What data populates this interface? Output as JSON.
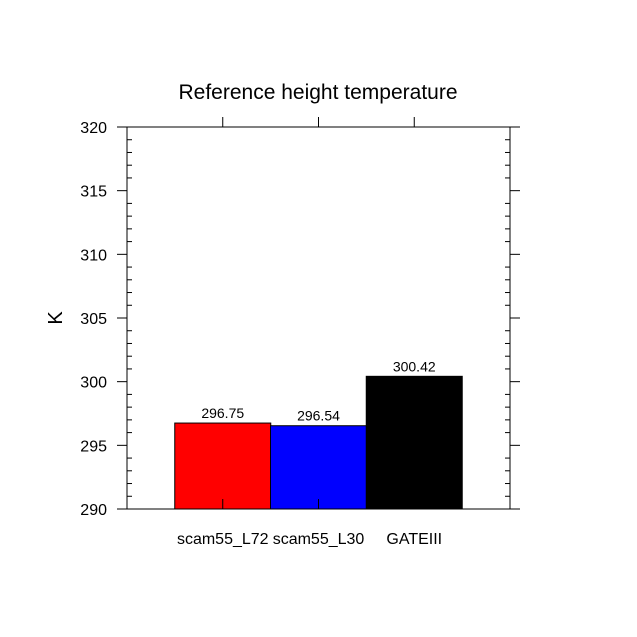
{
  "chart_data": {
    "type": "bar",
    "title": "Reference height temperature",
    "xlabel": "",
    "ylabel": "K",
    "categories": [
      "scam55_L72",
      "scam55_L30",
      "GATEIII"
    ],
    "values": [
      296.75,
      296.54,
      300.42
    ],
    "value_labels": [
      "296.75",
      "296.54",
      "300.42"
    ],
    "bar_colors": [
      "#ff0000",
      "#0000ff",
      "#000000"
    ],
    "ylim": [
      290,
      320
    ],
    "yticks": [
      290,
      295,
      300,
      305,
      310,
      315,
      320
    ],
    "ytick_labels": [
      "290",
      "295",
      "300",
      "305",
      "310",
      "315",
      "320"
    ],
    "y_minor_step": 1,
    "grid": false,
    "legend": "none"
  }
}
